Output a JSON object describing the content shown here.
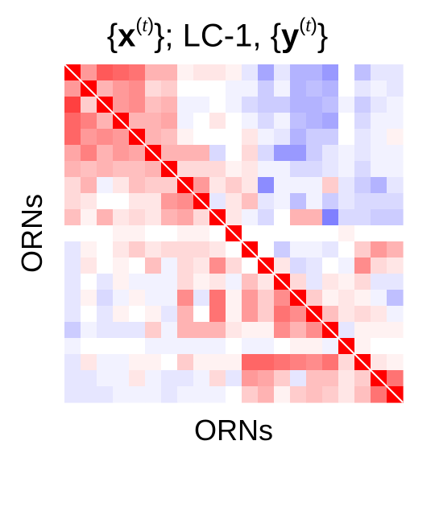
{
  "chart_data": {
    "type": "heatmap",
    "title_parts": {
      "lbrace": "{",
      "x": "x",
      "t1": "(t)",
      "mid": "}; LC-1, {",
      "y": "y",
      "t2": "(t)",
      "rbrace": "}"
    },
    "xlabel": "ORNs",
    "ylabel": "ORNs",
    "diagonal_line": true,
    "colormap": "bwr",
    "vmin": -1,
    "vmax": 1,
    "colors": {
      "positive": "#ff0000",
      "negative": "#0000ff",
      "zero": "#ffffff",
      "diagonal_line": "#ffffff"
    },
    "matrix": [
      [
        1.0,
        0.4,
        0.65,
        0.6,
        0.55,
        0.3,
        0.3,
        0.05,
        0.1,
        0.1,
        0.05,
        -0.1,
        -0.35,
        -0.1,
        -0.3,
        -0.3,
        -0.4,
        0.0,
        -0.25,
        -0.1,
        -0.1
      ],
      [
        0.4,
        1.0,
        0.3,
        0.4,
        0.45,
        0.15,
        0.2,
        0.0,
        0.0,
        0.0,
        -0.05,
        -0.05,
        -0.2,
        -0.05,
        -0.3,
        -0.25,
        -0.3,
        0.0,
        -0.1,
        -0.05,
        -0.1
      ],
      [
        0.75,
        0.2,
        1.0,
        0.4,
        0.45,
        0.25,
        0.3,
        -0.05,
        -0.05,
        0.0,
        -0.05,
        -0.15,
        -0.2,
        -0.2,
        -0.3,
        -0.3,
        -0.25,
        -0.05,
        -0.2,
        -0.1,
        -0.05
      ],
      [
        0.6,
        0.5,
        0.3,
        1.0,
        0.3,
        0.3,
        0.35,
        -0.05,
        0.0,
        0.1,
        0.0,
        -0.05,
        -0.15,
        -0.05,
        -0.25,
        -0.3,
        -0.35,
        0.0,
        -0.15,
        -0.05,
        -0.05
      ],
      [
        0.6,
        0.4,
        0.45,
        0.4,
        1.0,
        0.3,
        0.25,
        0.05,
        0.0,
        0.0,
        0.0,
        0.1,
        -0.05,
        -0.1,
        -0.3,
        -0.2,
        -0.2,
        0.0,
        -0.1,
        -0.05,
        0.05
      ],
      [
        0.35,
        0.5,
        0.3,
        0.4,
        0.35,
        1.0,
        0.3,
        0.3,
        0.3,
        -0.15,
        0.0,
        0.15,
        -0.15,
        -0.4,
        -0.4,
        -0.2,
        -0.1,
        -0.05,
        -0.1,
        -0.05,
        -0.05
      ],
      [
        0.3,
        0.25,
        0.3,
        0.25,
        0.25,
        0.3,
        1.0,
        0.15,
        0.15,
        0.15,
        0.05,
        0.1,
        -0.05,
        -0.05,
        -0.15,
        -0.15,
        -0.1,
        -0.05,
        -0.15,
        -0.05,
        -0.05
      ],
      [
        0.15,
        0.3,
        -0.05,
        0.1,
        0.25,
        0.2,
        0.2,
        1.0,
        0.4,
        0.1,
        0.2,
        0.1,
        -0.45,
        -0.05,
        -0.05,
        -0.05,
        0.2,
        -0.1,
        -0.2,
        -0.3,
        -0.1
      ],
      [
        0.15,
        0.1,
        0.0,
        0.0,
        0.1,
        0.1,
        0.4,
        0.45,
        1.0,
        -0.1,
        0.1,
        0.25,
        -0.1,
        -0.05,
        -0.25,
        -0.05,
        -0.2,
        -0.1,
        -0.15,
        -0.15,
        -0.15
      ],
      [
        0.25,
        0.05,
        0.3,
        0.1,
        0.15,
        0.1,
        0.3,
        0.35,
        0.15,
        1.0,
        0.1,
        -0.05,
        -0.15,
        0.0,
        0.3,
        0.3,
        -0.5,
        -0.15,
        -0.15,
        -0.2,
        -0.2
      ],
      [
        0.0,
        0.0,
        0.0,
        0.05,
        0.05,
        0.0,
        0.0,
        0.05,
        0.05,
        0.0,
        1.0,
        0.0,
        0.0,
        0.0,
        0.0,
        0.0,
        0.0,
        0.05,
        0.0,
        0.0,
        0.0
      ],
      [
        -0.1,
        0.05,
        0.0,
        0.1,
        0.2,
        0.1,
        0.15,
        0.15,
        0.15,
        0.1,
        0.0,
        1.0,
        0.0,
        -0.2,
        -0.05,
        -0.05,
        -0.1,
        0.0,
        0.2,
        0.4,
        0.3
      ],
      [
        -0.1,
        0.1,
        0.0,
        0.05,
        0.0,
        0.25,
        -0.05,
        0.15,
        0.1,
        0.45,
        0.15,
        0.0,
        1.0,
        0.1,
        -0.15,
        -0.1,
        0.0,
        -0.05,
        0.45,
        0.15,
        0.1
      ],
      [
        -0.1,
        0.0,
        -0.1,
        0.05,
        -0.05,
        -0.05,
        -0.05,
        0.15,
        0.05,
        0.1,
        -0.05,
        0.25,
        0.1,
        1.0,
        0.15,
        -0.1,
        0.1,
        0.05,
        0.15,
        -0.1,
        -0.1
      ],
      [
        -0.1,
        0.05,
        -0.15,
        -0.05,
        0.05,
        -0.05,
        -0.05,
        0.45,
        -0.1,
        0.55,
        0.05,
        0.4,
        0.2,
        0.45,
        1.0,
        0.2,
        0.05,
        0.1,
        0.05,
        -0.05,
        -0.25
      ],
      [
        -0.1,
        0.0,
        -0.1,
        0.05,
        0.0,
        0.05,
        -0.1,
        0.3,
        0.0,
        0.55,
        0.05,
        0.4,
        0.2,
        0.55,
        0.45,
        1.0,
        0.25,
        0.1,
        0.15,
        0.1,
        -0.05
      ],
      [
        -0.2,
        -0.05,
        -0.1,
        -0.1,
        -0.1,
        0.2,
        -0.05,
        0.3,
        0.3,
        0.3,
        0.1,
        0.05,
        0.05,
        0.45,
        0.3,
        0.45,
        1.0,
        -0.1,
        0.05,
        0.05,
        0.05
      ],
      [
        -0.05,
        0.0,
        0.0,
        0.0,
        0.0,
        -0.05,
        -0.05,
        -0.05,
        -0.05,
        -0.05,
        0.0,
        -0.05,
        -0.05,
        0.0,
        0.05,
        0.05,
        -0.05,
        1.0,
        0.05,
        0.0,
        0.0
      ],
      [
        -0.1,
        0.1,
        -0.05,
        -0.05,
        0.05,
        0.05,
        0.0,
        0.2,
        0.05,
        0.05,
        0.05,
        0.6,
        0.6,
        0.55,
        0.5,
        0.45,
        0.55,
        0.15,
        1.0,
        0.1,
        0.05
      ],
      [
        -0.1,
        -0.1,
        -0.05,
        -0.05,
        0.1,
        -0.05,
        -0.1,
        -0.1,
        -0.05,
        0.15,
        -0.1,
        0.4,
        0.35,
        0.2,
        -0.1,
        0.25,
        0.25,
        0.1,
        0.2,
        1.0,
        0.55
      ],
      [
        -0.1,
        -0.1,
        -0.1,
        -0.05,
        -0.05,
        -0.05,
        -0.1,
        -0.05,
        -0.05,
        -0.05,
        0.0,
        0.2,
        0.3,
        0.05,
        0.2,
        0.25,
        0.2,
        0.1,
        0.25,
        0.55,
        1.0
      ]
    ]
  }
}
